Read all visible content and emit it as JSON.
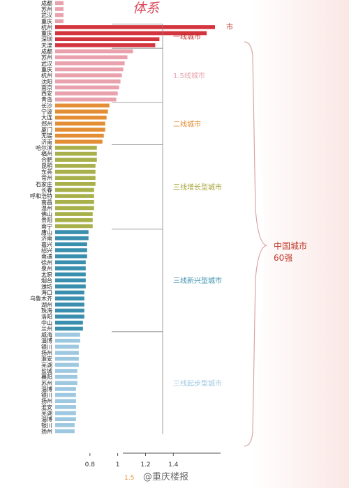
{
  "header": {
    "title_fragment": "体系"
  },
  "top_bar_text": "市",
  "chart_data": {
    "type": "bar",
    "orientation": "horizontal",
    "xlim": [
      0.55,
      1.75
    ],
    "x_ticks": [
      "0.8",
      "1",
      "1.2",
      "1.4"
    ],
    "legend_fragment": "1.5",
    "rows": [
      {
        "label": "成都",
        "value": 0.61,
        "color": "#e9a2ad"
      },
      {
        "label": "苏州",
        "value": 0.61,
        "color": "#e9a2ad"
      },
      {
        "label": "武汉",
        "value": 0.61,
        "color": "#e9a2ad"
      },
      {
        "label": "重庆",
        "value": 0.61,
        "color": "#e9a2ad"
      },
      {
        "label": "杭州",
        "value": 1.7,
        "color": "#d3343e"
      },
      {
        "label": "重庆",
        "value": 1.64,
        "color": "#d3343e"
      },
      {
        "label": "深圳",
        "value": 1.3,
        "color": "#d3343e"
      },
      {
        "label": "天津",
        "value": 1.27,
        "color": "#d3343e"
      },
      {
        "label": "成都",
        "value": 1.11,
        "color": "#e9a2ad"
      },
      {
        "label": "苏州",
        "value": 1.07,
        "color": "#e9a2ad"
      },
      {
        "label": "武汉",
        "value": 1.05,
        "color": "#e9a2ad"
      },
      {
        "label": "重庆",
        "value": 1.04,
        "color": "#e9a2ad"
      },
      {
        "label": "杭州",
        "value": 1.03,
        "color": "#e9a2ad"
      },
      {
        "label": "沈阳",
        "value": 1.02,
        "color": "#e9a2ad"
      },
      {
        "label": "南京",
        "value": 1.01,
        "color": "#e9a2ad"
      },
      {
        "label": "西安",
        "value": 1.0,
        "color": "#e9a2ad"
      },
      {
        "label": "青岛",
        "value": 0.99,
        "color": "#e9a2ad"
      },
      {
        "label": "长沙",
        "value": 0.94,
        "color": "#e38e35"
      },
      {
        "label": "宁波",
        "value": 0.93,
        "color": "#e38e35"
      },
      {
        "label": "大连",
        "value": 0.92,
        "color": "#e38e35"
      },
      {
        "label": "郑州",
        "value": 0.91,
        "color": "#e38e35"
      },
      {
        "label": "厦门",
        "value": 0.91,
        "color": "#e38e35"
      },
      {
        "label": "无锡",
        "value": 0.9,
        "color": "#e38e35"
      },
      {
        "label": "济南",
        "value": 0.89,
        "color": "#e38e35"
      },
      {
        "label": "哈尔滨",
        "value": 0.85,
        "color": "#a7b04a"
      },
      {
        "label": "福州",
        "value": 0.85,
        "color": "#a7b04a"
      },
      {
        "label": "合肥",
        "value": 0.85,
        "color": "#a7b04a"
      },
      {
        "label": "昆明",
        "value": 0.84,
        "color": "#a7b04a"
      },
      {
        "label": "东莞",
        "value": 0.84,
        "color": "#a7b04a"
      },
      {
        "label": "常州",
        "value": 0.84,
        "color": "#a7b04a"
      },
      {
        "label": "石家庄",
        "value": 0.84,
        "color": "#a7b04a"
      },
      {
        "label": "长春",
        "value": 0.83,
        "color": "#a7b04a"
      },
      {
        "label": "呼和浩特",
        "value": 0.83,
        "color": "#a7b04a"
      },
      {
        "label": "南昌",
        "value": 0.83,
        "color": "#a7b04a"
      },
      {
        "label": "温州",
        "value": 0.83,
        "color": "#a7b04a"
      },
      {
        "label": "佛山",
        "value": 0.82,
        "color": "#a7b04a"
      },
      {
        "label": "贵阳",
        "value": 0.82,
        "color": "#a7b04a"
      },
      {
        "label": "南宁",
        "value": 0.82,
        "color": "#a7b04a"
      },
      {
        "label": "唐山",
        "value": 0.79,
        "color": "#3b8fae"
      },
      {
        "label": "济南",
        "value": 0.79,
        "color": "#3b8fae"
      },
      {
        "label": "嘉兴",
        "value": 0.78,
        "color": "#3b8fae"
      },
      {
        "label": "绍兴",
        "value": 0.78,
        "color": "#3b8fae"
      },
      {
        "label": "南通",
        "value": 0.78,
        "color": "#3b8fae"
      },
      {
        "label": "徐州",
        "value": 0.77,
        "color": "#3b8fae"
      },
      {
        "label": "泉州",
        "value": 0.77,
        "color": "#3b8fae"
      },
      {
        "label": "太原",
        "value": 0.77,
        "color": "#3b8fae"
      },
      {
        "label": "烟台",
        "value": 0.77,
        "color": "#3b8fae"
      },
      {
        "label": "潍坊",
        "value": 0.77,
        "color": "#3b8fae"
      },
      {
        "label": "海口",
        "value": 0.76,
        "color": "#3b8fae"
      },
      {
        "label": "乌鲁木齐",
        "value": 0.76,
        "color": "#3b8fae"
      },
      {
        "label": "湖州",
        "value": 0.76,
        "color": "#3b8fae"
      },
      {
        "label": "珠海",
        "value": 0.76,
        "color": "#3b8fae"
      },
      {
        "label": "洛阳",
        "value": 0.76,
        "color": "#3b8fae"
      },
      {
        "label": "中山",
        "value": 0.75,
        "color": "#3b8fae"
      },
      {
        "label": "兰州",
        "value": 0.75,
        "color": "#3b8fae"
      },
      {
        "label": "威海",
        "value": 0.73,
        "color": "#9ec8e0"
      },
      {
        "label": "淄博",
        "value": 0.73,
        "color": "#9ec8e0"
      },
      {
        "label": "银川",
        "value": 0.72,
        "color": "#9ec8e0"
      },
      {
        "label": "扬州",
        "value": 0.72,
        "color": "#9ec8e0"
      },
      {
        "label": "淮安",
        "value": 0.72,
        "color": "#9ec8e0"
      },
      {
        "label": "芜湖",
        "value": 0.72,
        "color": "#9ec8e0"
      },
      {
        "label": "盐城",
        "value": 0.71,
        "color": "#9ec8e0"
      },
      {
        "label": "襄阳",
        "value": 0.71,
        "color": "#9ec8e0"
      },
      {
        "label": "苏州",
        "value": 0.71,
        "color": "#9ec8e0"
      },
      {
        "label": "淄博",
        "value": 0.7,
        "color": "#9ec8e0"
      },
      {
        "label": "银川",
        "value": 0.7,
        "color": "#9ec8e0"
      },
      {
        "label": "扬州",
        "value": 0.7,
        "color": "#9ec8e0"
      },
      {
        "label": "淮安",
        "value": 0.7,
        "color": "#9ec8e0"
      },
      {
        "label": "芜湖",
        "value": 0.7,
        "color": "#9ec8e0"
      },
      {
        "label": "淄博",
        "value": 0.7,
        "color": "#9ec8e0"
      },
      {
        "label": "银川",
        "value": 0.69,
        "color": "#9ec8e0"
      },
      {
        "label": "扬州",
        "value": 0.69,
        "color": "#9ec8e0"
      }
    ],
    "groups": [
      {
        "label": "一线城市",
        "color": "#c62b2b"
      },
      {
        "label": "1.5线城市",
        "color": "#e7a4ae"
      },
      {
        "label": "二线城市",
        "color": "#e38e35"
      },
      {
        "label": "三线增长型城市",
        "color": "#a7a43b"
      },
      {
        "label": "三线新兴型城市",
        "color": "#3b8fae"
      },
      {
        "label": "三线起步型城市",
        "color": "#9ec8e0"
      }
    ],
    "total_label_lines": [
      "中国城市",
      "60强"
    ],
    "total_label_color": "#c0392b"
  },
  "watermark": "@重庆楼报"
}
